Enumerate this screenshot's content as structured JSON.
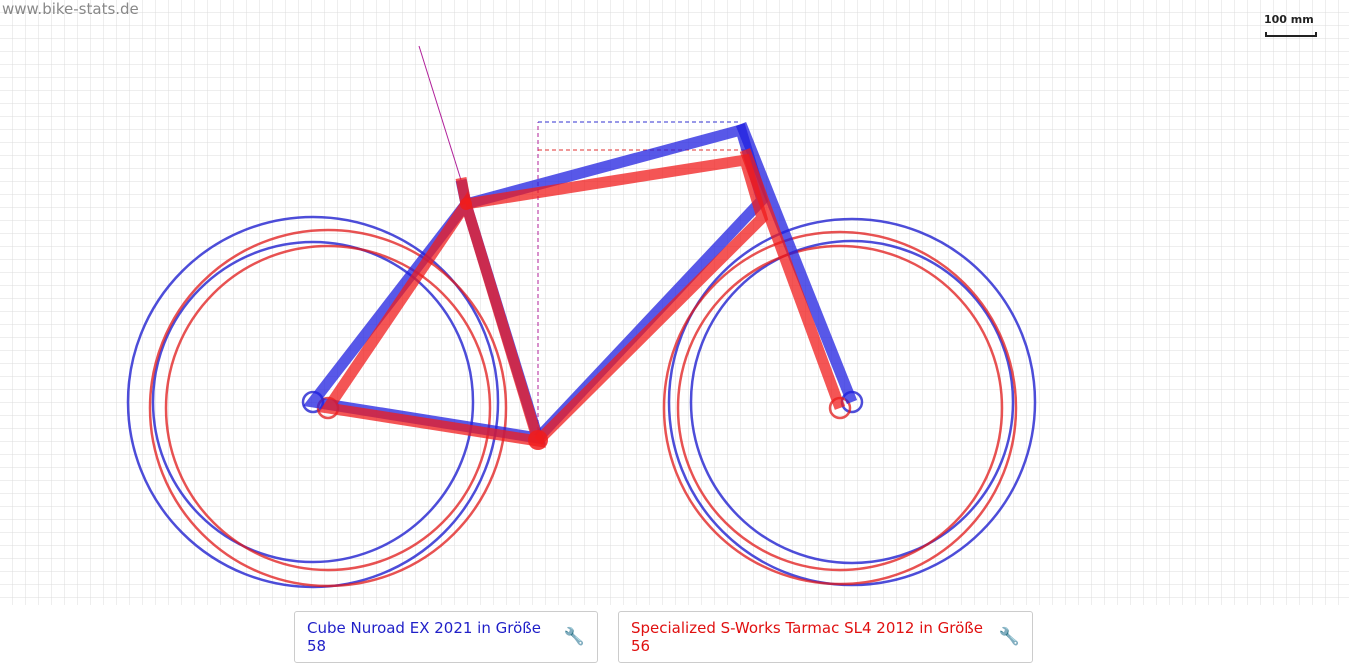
{
  "header": {
    "site": "www.bike-stats.de",
    "scale": "100 mm"
  },
  "bikes": [
    {
      "label": "Cube Nuroad EX 2021 in Größe 58",
      "color": "#1f1fc8"
    },
    {
      "label": "Specialized S-Works Tarmac SL4 2012 in Größe 56",
      "color": "#e01010"
    }
  ]
}
